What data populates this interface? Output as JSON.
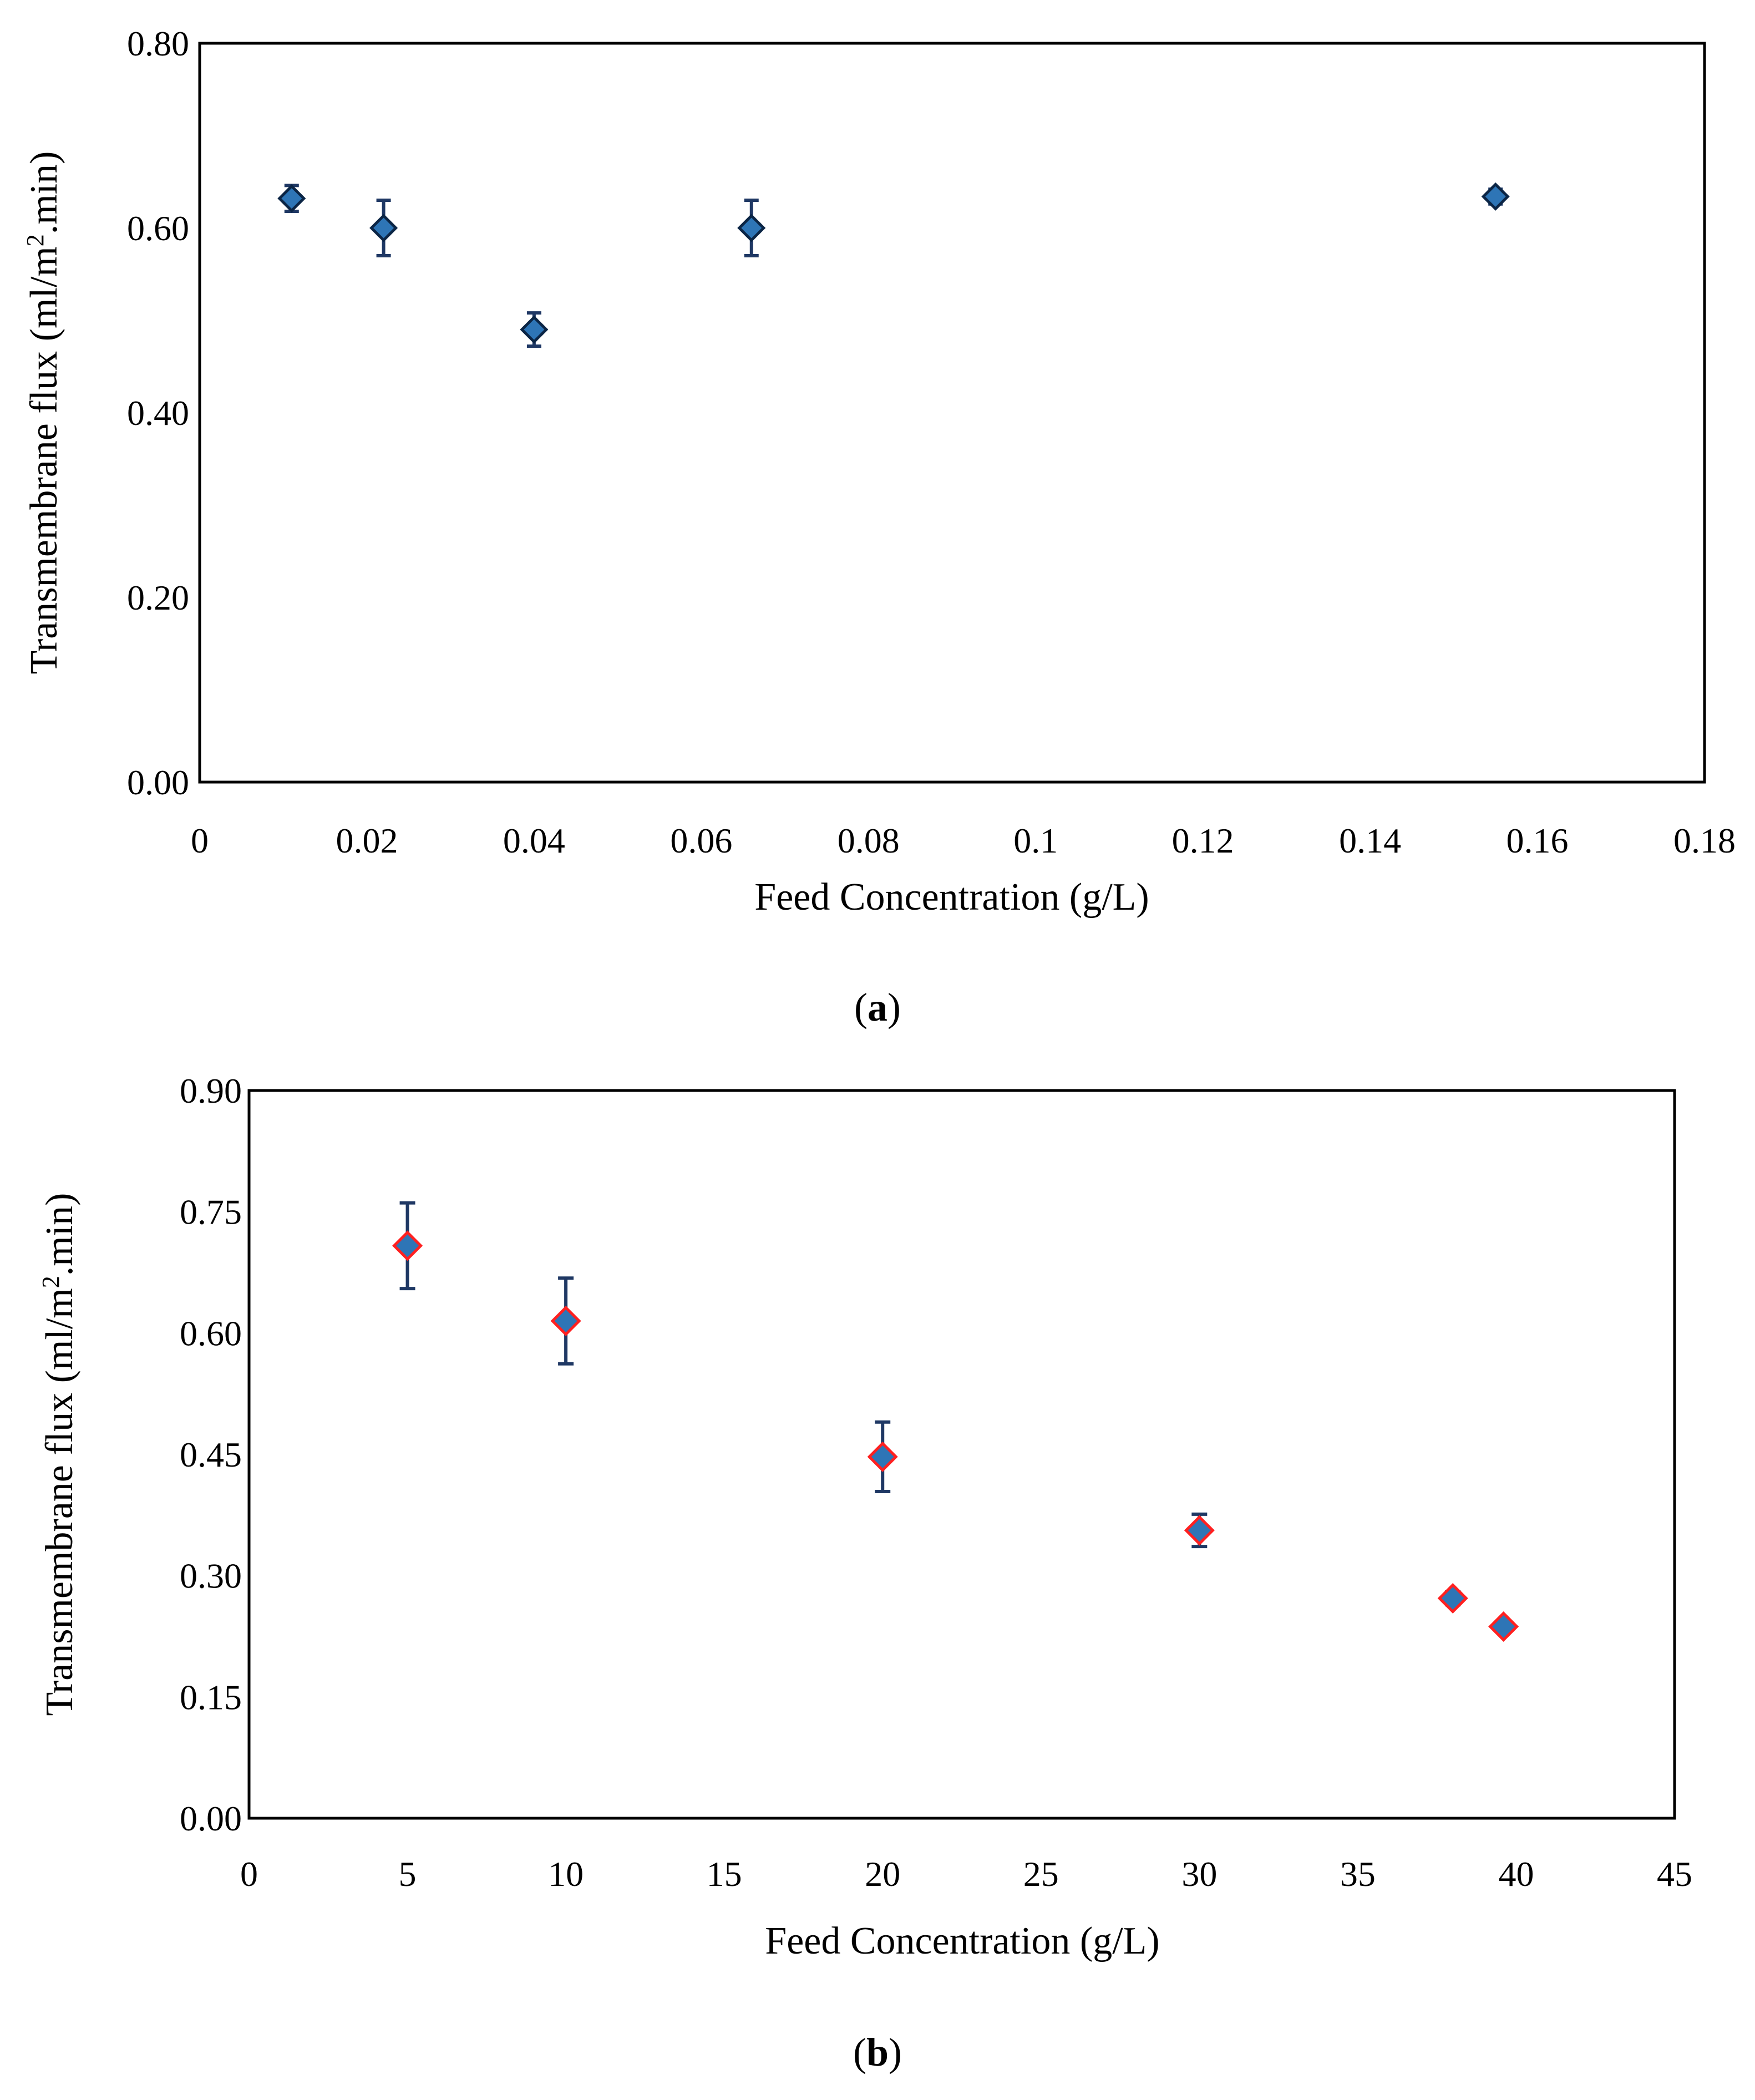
{
  "chart_data": [
    {
      "id": "a",
      "type": "scatter",
      "panel_label": "a",
      "xlabel": "Feed Concentration (g/L)",
      "ylabel_prefix": "Transmembrane flux (ml/m",
      "ylabel_sup": "2",
      "ylabel_suffix": ".min)",
      "xlim": [
        0,
        0.18
      ],
      "ylim": [
        0,
        0.8
      ],
      "xticks": [
        0,
        0.02,
        0.04,
        0.06,
        0.08,
        0.1,
        0.12,
        0.14,
        0.16,
        0.18
      ],
      "xtick_labels": [
        "0",
        "0.02",
        "0.04",
        "0.06",
        "0.08",
        "0.1",
        "0.12",
        "0.14",
        "0.16",
        "0.18"
      ],
      "yticks": [
        0,
        0.2,
        0.4,
        0.6,
        0.8
      ],
      "ytick_labels": [
        "0.00",
        "0.20",
        "0.40",
        "0.60",
        "0.80"
      ],
      "marker_fill": "#2e75b6",
      "marker_edge": "#0b2545",
      "errorbar_color": "#1f3864",
      "series": [
        {
          "name": "Transmembrane flux",
          "points": [
            {
              "x": 0.011,
              "y": 0.632,
              "err": 0.014
            },
            {
              "x": 0.022,
              "y": 0.6,
              "err": 0.03
            },
            {
              "x": 0.04,
              "y": 0.49,
              "err": 0.018
            },
            {
              "x": 0.066,
              "y": 0.6,
              "err": 0.03
            },
            {
              "x": 0.155,
              "y": 0.634,
              "err": 0.008
            }
          ]
        }
      ]
    },
    {
      "id": "b",
      "type": "scatter",
      "panel_label": "b",
      "xlabel": "Feed Concentration  (g/L)",
      "ylabel_prefix": "Transmembrane  flux (ml/m",
      "ylabel_sup": "2",
      "ylabel_suffix": ".min)",
      "xlim": [
        0,
        45
      ],
      "ylim": [
        0,
        0.9
      ],
      "xticks": [
        0,
        5,
        10,
        15,
        20,
        25,
        30,
        35,
        40,
        45
      ],
      "xtick_labels": [
        "0",
        "5",
        "10",
        "15",
        "20",
        "25",
        "30",
        "35",
        "40",
        "45"
      ],
      "yticks": [
        0,
        0.15,
        0.3,
        0.45,
        0.6,
        0.75,
        0.9
      ],
      "ytick_labels": [
        "0.00",
        "0.15",
        "0.30",
        "0.45",
        "0.60",
        "0.75",
        "0.90"
      ],
      "marker_fill": "#2e75b6",
      "marker_edge": "#ff2020",
      "errorbar_color": "#1f3864",
      "series": [
        {
          "name": "Transmembrane flux",
          "points": [
            {
              "x": 5,
              "y": 0.708,
              "err": 0.053
            },
            {
              "x": 10,
              "y": 0.615,
              "err": 0.053
            },
            {
              "x": 20,
              "y": 0.447,
              "err": 0.043
            },
            {
              "x": 30,
              "y": 0.356,
              "err": 0.02
            },
            {
              "x": 38,
              "y": 0.272,
              "err": 0.008
            },
            {
              "x": 39.6,
              "y": 0.237,
              "err": 0.006
            }
          ]
        }
      ]
    }
  ]
}
